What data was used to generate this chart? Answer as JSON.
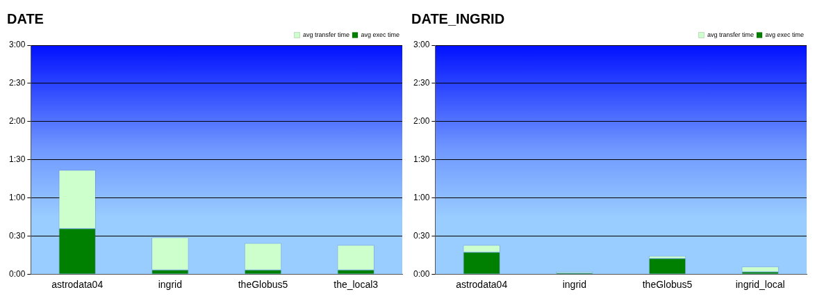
{
  "chart_data": [
    {
      "type": "bar",
      "title": "DATE",
      "categories": [
        "astrodata04",
        "ingrid",
        "theGlobus5",
        "the_local3"
      ],
      "stacked": true,
      "legend": "top right",
      "grid": "y",
      "series": [
        {
          "name": "avg exec time",
          "color": "#008000",
          "values": [
            36,
            3.5,
            3.5,
            3.5
          ]
        },
        {
          "name": "avg transfer time",
          "color": "#ccffcc",
          "values": [
            46,
            25.5,
            21,
            19.5
          ]
        }
      ],
      "ylim": [
        0,
        180
      ],
      "yticks": [
        {
          "value": 0,
          "label": "0:00"
        },
        {
          "value": 30,
          "label": "0:30"
        },
        {
          "value": 60,
          "label": "1:00"
        },
        {
          "value": 90,
          "label": "1:30"
        },
        {
          "value": 120,
          "label": "2:00"
        },
        {
          "value": 150,
          "label": "2:30"
        },
        {
          "value": 180,
          "label": "3:00"
        }
      ]
    },
    {
      "type": "bar",
      "title": "DATE_INGRID",
      "categories": [
        "astrodata04",
        "ingrid",
        "theGlobus5",
        "ingrid_local"
      ],
      "stacked": true,
      "legend": "top right",
      "grid": "y",
      "series": [
        {
          "name": "avg exec time",
          "color": "#008000",
          "values": [
            17.5,
            1,
            12.5,
            2
          ]
        },
        {
          "name": "avg transfer time",
          "color": "#ccffcc",
          "values": [
            5.5,
            1,
            2,
            4
          ]
        }
      ],
      "ylim": [
        0,
        180
      ],
      "yticks": [
        {
          "value": 0,
          "label": "0:00"
        },
        {
          "value": 30,
          "label": "0:30"
        },
        {
          "value": 60,
          "label": "1:00"
        },
        {
          "value": 90,
          "label": "1:30"
        },
        {
          "value": 120,
          "label": "2:00"
        },
        {
          "value": 150,
          "label": "2:30"
        },
        {
          "value": 180,
          "label": "3:00"
        }
      ]
    }
  ]
}
